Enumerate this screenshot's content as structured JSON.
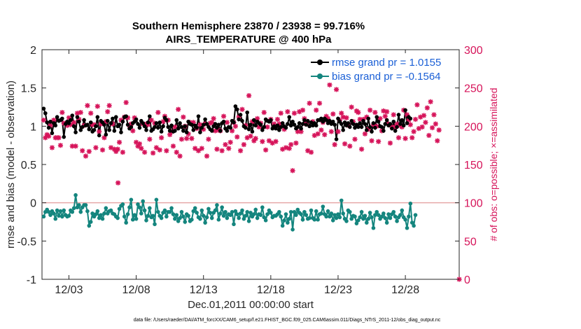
{
  "chart_data": {
    "type": "line",
    "title_line1": "Southern Hemisphere 23870 / 23938 = 99.716%",
    "title_line2": "AIRS_TEMPERATURE @ 400 hPa",
    "xlabel": "Dec.01,2011 00:00:00 start",
    "ylabel_left": "rmse and bias (model - observation)",
    "ylabel_right": "# of obs: o=possible; ×=assimilated",
    "footer": "data file: /Users/raeder/DAI/ATM_forcXX/CAM6_setup/f.e21.FHIST_BGC.f09_025.CAM6assim.011/Diags_NTrS_2011-12/obs_diag_output.nc",
    "x_ticks": [
      "12/03",
      "12/08",
      "12/13",
      "12/18",
      "12/23",
      "12/28"
    ],
    "x_tick_days": [
      3,
      8,
      13,
      18,
      23,
      28
    ],
    "xlim": [
      1.0,
      32.0
    ],
    "ylim_left": [
      -1,
      2
    ],
    "y_ticks_left": [
      "-1",
      "-0.5",
      "0",
      "0.5",
      "1",
      "1.5",
      "2"
    ],
    "ylim_right": [
      0,
      300
    ],
    "y_ticks_right": [
      "0",
      "50",
      "100",
      "150",
      "200",
      "250",
      "300"
    ],
    "legend": {
      "position": "top-right",
      "rmse_label": "rmse grand pr = 1.0155",
      "bias_label": "bias grand pr = -0.1564"
    },
    "colors": {
      "rmse": "#000000",
      "bias": "#14857e",
      "obs": "#d6145a",
      "zero_line": "#e6a8a8",
      "legend_text": "#1a5fd6"
    },
    "series": [
      {
        "name": "rmse",
        "values": [
          1.23,
          1.17,
          1.05,
          0.98,
          1.06,
          0.91,
          1.04,
          1.01,
          1.12,
          1.07,
          1.08,
          1.1,
          0.86,
          1.03,
          1.06,
          1.04,
          1.08,
          1.14,
          1.0,
          0.92,
          1.12,
          1.06,
          0.95,
          0.99,
          1.08,
          1.01,
          1.02,
          0.96,
          1.05,
          0.93,
          0.95,
          1.0,
          1.12,
          0.88,
          1.07,
          1.05,
          1.02,
          0.89,
          1.07,
          0.95,
          1.04,
          1.1,
          0.94,
          1.12,
          1.0,
          1.02,
          0.92,
          1.06,
          1.12,
          1.13,
          1.02,
          0.97,
          0.99,
          1.04,
          1.06,
          1.09,
          1.03,
          0.98,
          1.07,
          1.04,
          1.0,
          0.95,
          1.05,
          1.13,
          0.94,
          0.96,
          0.99,
          1.04,
          0.98,
          1.05,
          0.93,
          1.0,
          1.11,
          1.08,
          0.99,
          0.94,
          1.01,
          0.93,
          0.94,
          1.08,
          0.97,
          1.04,
          0.99,
          0.94,
          1.0,
          0.92,
          1.06,
          1.03,
          1.02,
          0.95,
          1.01,
          0.98,
          1.13,
          0.92,
          0.98,
          1.02,
          1.09,
          1.03,
          0.99,
          0.96,
          0.94,
          1.0,
          1.03,
          0.98,
          1.02,
          0.94,
          1.04,
          1.06,
          0.97,
          0.94,
          0.99,
          0.98,
          1.07,
          1.05,
          1.26,
          1.22,
          1.09,
          1.15,
          1.07,
          1.0,
          0.98,
          1.18,
          0.96,
          1.02,
          0.93,
          1.08,
          1.01,
          1.06,
          1.04,
          1.02,
          0.95,
          0.99,
          1.09,
          1.07,
          1.06,
          1.08,
          0.97,
          1.0,
          0.97,
          1.01,
          0.95,
          0.99,
          1.04,
          1.0,
          0.98,
          1.03,
          1.12,
          1.01,
          1.06,
          1.02,
          0.97,
          0.99,
          1.04,
          0.97,
          1.03,
          1.08,
          1.02,
          1.07,
          1.0,
          1.05,
          1.01,
          1.04,
          1.01,
          1.08,
          1.08,
          1.1,
          1.06,
          1.1,
          1.08,
          1.04,
          1.07,
          1.03,
          1.06,
          1.02,
          0.83,
          1.1,
          1.06,
          1.03,
          0.95,
          1.05,
          1.01,
          1.04,
          0.99,
          1.07,
          1.03,
          0.98,
          1.02,
          0.99,
          1.04,
          0.99,
          1.07,
          1.03,
          0.95,
          1.1,
          0.99,
          0.93,
          1.04,
          0.98,
          1.12,
          1.06,
          1.0,
          0.99,
          0.94,
          1.03,
          1.08,
          1.01,
          1.03,
          0.97,
          1.06,
          0.94,
          0.99,
          1.15,
          1.03,
          1.08,
          1.01,
          1.21,
          1.04,
          1.12,
          1.1
        ]
      },
      {
        "name": "bias",
        "values": [
          -0.18,
          -0.12,
          -0.09,
          -0.12,
          -0.16,
          -0.11,
          -0.14,
          -0.21,
          -0.1,
          -0.17,
          -0.11,
          -0.18,
          -0.1,
          -0.16,
          -0.18,
          -0.17,
          -0.1,
          -0.12,
          -0.07,
          0.1,
          -0.06,
          -0.03,
          -0.12,
          -0.06,
          -0.03,
          -0.03,
          -0.11,
          -0.3,
          -0.25,
          -0.14,
          -0.18,
          -0.15,
          -0.11,
          -0.2,
          -0.16,
          -0.21,
          -0.14,
          -0.07,
          -0.14,
          -0.11,
          -0.1,
          -0.14,
          -0.15,
          -0.18,
          -0.2,
          -0.08,
          -0.04,
          -0.02,
          -0.18,
          -0.26,
          -0.15,
          -0.06,
          0.04,
          -0.22,
          -0.16,
          -0.21,
          -0.02,
          -0.06,
          -0.14,
          0.02,
          -0.1,
          -0.23,
          -0.17,
          -0.07,
          -0.19,
          -0.17,
          -0.28,
          0.04,
          -0.12,
          -0.17,
          -0.2,
          -0.13,
          -0.1,
          -0.18,
          -0.12,
          -0.12,
          -0.07,
          -0.15,
          -0.21,
          -0.16,
          -0.24,
          -0.2,
          -0.12,
          -0.18,
          -0.25,
          -0.15,
          -0.17,
          -0.24,
          -0.22,
          -0.11,
          -0.07,
          -0.13,
          -0.19,
          -0.21,
          -0.1,
          -0.17,
          -0.26,
          -0.19,
          -0.08,
          -0.13,
          -0.2,
          -0.13,
          -0.1,
          -0.03,
          -0.22,
          -0.14,
          -0.06,
          -0.17,
          -0.12,
          -0.2,
          -0.15,
          -0.16,
          -0.12,
          -0.28,
          -0.11,
          -0.15,
          -0.2,
          -0.14,
          -0.1,
          -0.21,
          -0.17,
          -0.12,
          -0.24,
          -0.13,
          -0.18,
          -0.15,
          -0.09,
          -0.2,
          -0.15,
          -0.16,
          -0.06,
          -0.19,
          -0.23,
          -0.15,
          -0.1,
          -0.13,
          -0.19,
          -0.17,
          -0.17,
          -0.15,
          -0.12,
          -0.18,
          -0.3,
          -0.23,
          -0.15,
          -0.26,
          -0.21,
          -0.12,
          -0.35,
          -0.12,
          -0.16,
          -0.09,
          -0.13,
          -0.15,
          -0.22,
          -0.12,
          -0.16,
          -0.21,
          -0.2,
          -0.1,
          -0.2,
          -0.22,
          -0.11,
          -0.22,
          -0.15,
          -0.14,
          -0.05,
          -0.15,
          -0.18,
          -0.11,
          -0.18,
          -0.14,
          -0.23,
          -0.16,
          -0.2,
          -0.15,
          -0.19,
          0.03,
          -0.14,
          -0.21,
          -0.24,
          -0.1,
          -0.12,
          -0.21,
          -0.17,
          -0.18,
          -0.27,
          -0.23,
          -0.19,
          -0.12,
          -0.21,
          -0.17,
          -0.26,
          -0.21,
          -0.13,
          -0.19,
          -0.33,
          -0.16,
          -0.12,
          -0.16,
          -0.21,
          -0.18,
          -0.14,
          -0.2,
          -0.26,
          -0.15,
          -0.2,
          -0.15,
          -0.12,
          -0.18,
          -0.24,
          -0.19,
          -0.16,
          -0.1,
          -0.19,
          -0.22,
          -0.33,
          -0.18,
          -0.01,
          -0.26,
          -0.3,
          -0.16
        ]
      },
      {
        "name": "obs_scatter",
        "values": [
          208,
          185,
          189,
          187,
          201,
          172,
          208,
          185,
          185,
          185,
          175,
          218,
          204,
          204,
          201,
          211,
          202,
          174,
          205,
          174,
          217,
          209,
          218,
          168,
          201,
          161,
          227,
          167,
          217,
          202,
          202,
          172,
          226,
          193,
          203,
          169,
          185,
          206,
          219,
          227,
          172,
          203,
          170,
          167,
          170,
          179,
          208,
          166,
          212,
          231,
          211,
          201,
          203,
          194,
          211,
          179,
          174,
          177,
          171,
          203,
          166,
          203,
          202,
          183,
          208,
          165,
          204,
          172,
          218,
          169,
          185,
          206,
          213,
          168,
          208,
          189,
          193,
          174,
          199,
          166,
          222,
          161,
          183,
          212,
          200,
          184,
          190,
          205,
          184,
          205,
          171,
          197,
          168,
          202,
          171,
          196,
          203,
          161,
          183,
          204,
          205,
          210,
          194,
          170,
          195,
          194,
          168,
          213,
          176,
          205,
          171,
          179,
          194,
          205,
          200,
          186,
          212,
          168,
          222,
          176,
          201,
          185,
          240,
          187,
          206,
          181,
          184,
          210,
          199,
          204,
          180,
          218,
          169,
          199,
          181,
          209,
          178,
          203,
          180,
          209,
          203,
          217,
          170,
          196,
          172,
          219,
          171,
          176,
          142,
          217,
          178,
          193,
          219,
          193,
          221,
          210,
          203,
          168,
          230,
          166,
          206,
          188,
          221,
          190,
          230,
          195,
          205,
          189,
          213,
          210,
          254,
          193,
          216,
          176,
          248,
          193,
          208,
          217,
          212,
          177,
          211,
          201,
          174,
          225,
          206,
          183,
          220,
          218,
          209,
          170,
          209,
          190,
          212,
          196,
          221,
          181,
          202,
          218,
          200,
          180,
          210,
          194,
          220,
          213,
          219,
          203,
          178,
          199,
          215,
          199,
          203,
          185,
          201,
          199,
          221,
          184,
          215,
          208,
          202,
          185,
          193,
          209,
          228,
          197,
          212,
          199,
          214,
          205,
          224,
          188,
          232,
          198,
          215,
          203,
          181,
          195
        ]
      }
    ],
    "obs_extra_points": [
      {
        "x": 6.65,
        "y": 126
      },
      {
        "x": 32.0,
        "y": 0
      }
    ]
  }
}
